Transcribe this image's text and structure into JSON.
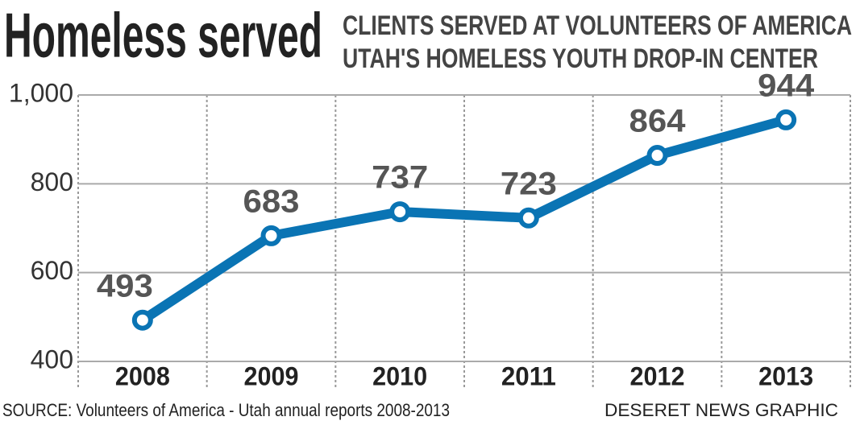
{
  "chart_data": {
    "type": "line",
    "title": "Homeless served",
    "subtitle": [
      "CLIENTS SERVED AT VOLUNTEERS OF AMERICA",
      "UTAH'S HOMELESS YOUTH DROP-IN CENTER"
    ],
    "categories": [
      "2008",
      "2009",
      "2010",
      "2011",
      "2012",
      "2013"
    ],
    "values": [
      493,
      683,
      737,
      723,
      864,
      944
    ],
    "color": "#0a74b4",
    "ylim": [
      400,
      1000
    ],
    "yticks": [
      400,
      600,
      800,
      {
        "value": 1000,
        "label": "1,000"
      }
    ],
    "grid": true,
    "source": "SOURCE: Volunteers of America - Utah annual reports 2008-2013",
    "credit": "DESERET NEWS GRAPHIC"
  }
}
